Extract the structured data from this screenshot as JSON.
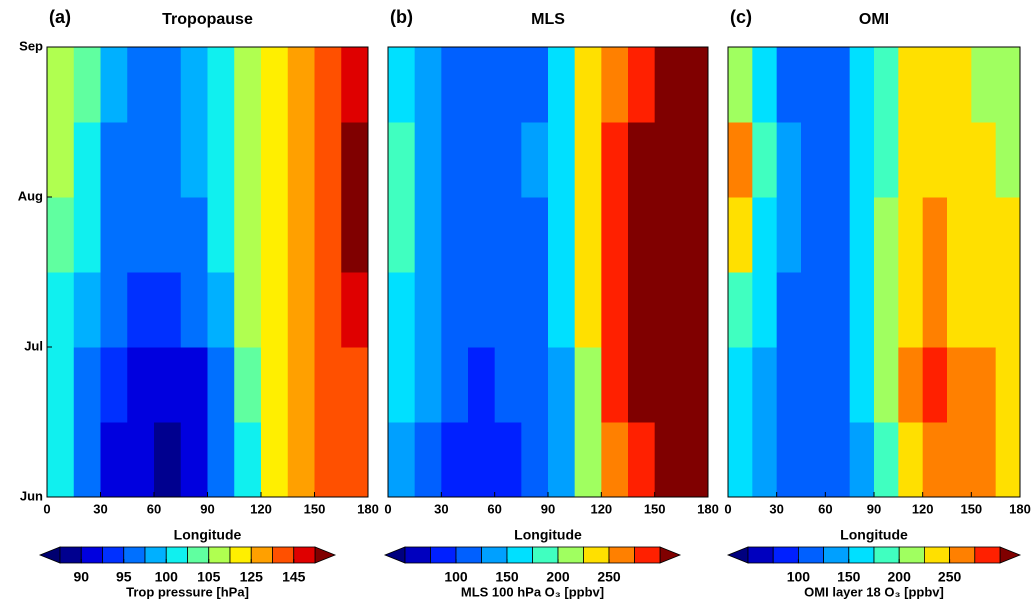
{
  "chart_data": [
    {
      "type": "heatmap",
      "panel_label": "(a)",
      "title": "Tropopause",
      "xlabel": "Longitude",
      "xlim": [
        0,
        180
      ],
      "xticks": [
        0,
        30,
        60,
        90,
        120,
        150,
        180
      ],
      "yticklabels": [
        "Jun",
        "Jul",
        "Aug",
        "Sep"
      ],
      "z": [
        [
          100,
          97,
          92,
          90,
          89,
          90,
          95,
          102,
          115,
          130,
          135,
          140
        ],
        [
          102,
          97,
          93,
          91,
          90,
          92,
          96,
          104,
          118,
          130,
          138,
          142
        ],
        [
          100,
          98,
          95,
          93,
          94,
          96,
          99,
          105,
          120,
          128,
          140,
          150
        ],
        [
          104,
          100,
          96,
          95,
          95,
          96,
          100,
          106,
          122,
          130,
          142,
          155
        ],
        [
          108,
          101,
          97,
          96,
          96,
          98,
          101,
          107,
          120,
          130,
          140,
          155
        ],
        [
          112,
          103,
          98,
          97,
          97,
          99,
          102,
          110,
          122,
          132,
          142,
          150
        ]
      ],
      "colorbar": {
        "label": "Trop pressure [hPa]",
        "levels": [
          87.5,
          90,
          92.5,
          95,
          97.5,
          100,
          102.5,
          105,
          115,
          125,
          135,
          145,
          155
        ],
        "colors": [
          "#00008f",
          "#0000df",
          "#0030ff",
          "#0070ff",
          "#00b0ff",
          "#10f0ef",
          "#60ffa0",
          "#b0ff50",
          "#ffef00",
          "#ffa000",
          "#ff5000",
          "#df0000"
        ],
        "under_color": "#000070",
        "over_color": "#800000",
        "ticks": [
          90,
          95,
          100,
          105,
          125,
          145
        ]
      }
    },
    {
      "type": "heatmap",
      "panel_label": "(b)",
      "title": "MLS",
      "xlabel": "Longitude",
      "xlim": [
        0,
        180
      ],
      "xticks": [
        0,
        30,
        60,
        90,
        120,
        150,
        180
      ],
      "z": [
        [
          140,
          120,
          95,
          90,
          95,
          100,
          130,
          210,
          260,
          290,
          300,
          300
        ],
        [
          150,
          125,
          100,
          95,
          100,
          105,
          140,
          220,
          280,
          300,
          310,
          310
        ],
        [
          170,
          135,
          110,
          105,
          110,
          115,
          150,
          230,
          290,
          310,
          310,
          310
        ],
        [
          190,
          140,
          115,
          110,
          110,
          120,
          160,
          240,
          290,
          310,
          310,
          310
        ],
        [
          180,
          145,
          120,
          115,
          115,
          125,
          170,
          240,
          280,
          310,
          310,
          310
        ],
        [
          170,
          140,
          115,
          110,
          110,
          120,
          160,
          230,
          270,
          290,
          310,
          310
        ]
      ],
      "colorbar": {
        "label": "MLS 100 hPa O₃ [ppbv]",
        "levels": [
          50,
          75,
          100,
          125,
          150,
          175,
          200,
          225,
          250,
          275,
          300
        ],
        "colors": [
          "#0000bf",
          "#0020ff",
          "#0060ff",
          "#00a0ff",
          "#00e0ff",
          "#40ffc0",
          "#a0ff60",
          "#ffe000",
          "#ff8000",
          "#ff2000"
        ],
        "under_color": "#00007f",
        "over_color": "#800000",
        "ticks": [
          100,
          150,
          200,
          250
        ]
      }
    },
    {
      "type": "heatmap",
      "panel_label": "(c)",
      "title": "OMI",
      "xlabel": "Longitude",
      "xlim": [
        0,
        180
      ],
      "xticks": [
        0,
        30,
        60,
        90,
        120,
        150,
        180
      ],
      "z": [
        [
          160,
          130,
          110,
          100,
          105,
          140,
          190,
          240,
          270,
          260,
          250,
          240
        ],
        [
          170,
          140,
          115,
          105,
          110,
          150,
          200,
          250,
          280,
          260,
          250,
          240
        ],
        [
          190,
          150,
          120,
          110,
          115,
          150,
          200,
          240,
          250,
          240,
          240,
          230
        ],
        [
          230,
          170,
          125,
          115,
          120,
          155,
          200,
          240,
          250,
          240,
          230,
          230
        ],
        [
          250,
          180,
          125,
          115,
          120,
          150,
          190,
          230,
          240,
          230,
          230,
          220
        ],
        [
          220,
          170,
          120,
          110,
          115,
          150,
          190,
          230,
          240,
          230,
          220,
          210
        ]
      ],
      "colorbar": {
        "label": "OMI layer 18 O₃ [ppbv]",
        "levels": [
          50,
          75,
          100,
          125,
          150,
          175,
          200,
          225,
          250,
          275,
          300
        ],
        "colors": [
          "#0000bf",
          "#0020ff",
          "#0060ff",
          "#00a0ff",
          "#00e0ff",
          "#40ffc0",
          "#a0ff60",
          "#ffe000",
          "#ff8000",
          "#ff2000"
        ],
        "under_color": "#00007f",
        "over_color": "#800000",
        "ticks": [
          100,
          150,
          200,
          250
        ]
      }
    }
  ]
}
